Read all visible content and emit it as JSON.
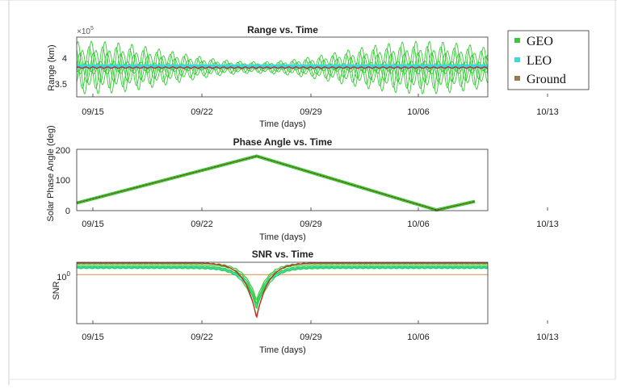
{
  "legend": {
    "items": [
      {
        "label": "GEO",
        "color": "#33cc33"
      },
      {
        "label": "LEO",
        "color": "#33dddd"
      },
      {
        "label": "Ground",
        "color": "#9a7a4a"
      }
    ]
  },
  "chart_data": [
    {
      "type": "line",
      "title": "Range vs. Time",
      "xlabel": "Time (days)",
      "ylabel": "Range (km)",
      "y_exponent_label": "×10^5",
      "x_ticks": [
        "09/15",
        "09/22",
        "09/29",
        "10/06",
        "10/13"
      ],
      "y_ticks": [
        "3.5",
        "4"
      ],
      "ylim": [
        3.35,
        4.35
      ],
      "series": [
        {
          "name": "GEO",
          "description_values": {
            "mean": 3.84,
            "amplitude_min": 0.1,
            "amplitude_max": 0.45,
            "amplitude_peak_dates": [
              "09/14",
              "10/07"
            ],
            "amplitude_trough_dates": [
              "09/26",
              "10/12"
            ]
          }
        },
        {
          "name": "LEO",
          "values_mean": 3.86
        },
        {
          "name": "Ground",
          "values_mean": 3.84
        }
      ]
    },
    {
      "type": "line",
      "title": "Phase Angle vs. Time",
      "xlabel": "Time (days)",
      "ylabel": "Solar Phase Angle (deg)",
      "x_ticks": [
        "09/15",
        "09/22",
        "09/29",
        "10/06",
        "10/13"
      ],
      "y_ticks": [
        "0",
        "100",
        "200"
      ],
      "ylim": [
        0,
        200
      ],
      "points": [
        {
          "date": "09/13",
          "value": 25
        },
        {
          "date": "09/27",
          "value": 178
        },
        {
          "date": "10/11",
          "value": 2
        },
        {
          "date": "10/14",
          "value": 30
        }
      ]
    },
    {
      "type": "line",
      "title": "SNR vs. Time",
      "xlabel": "Time (days)",
      "ylabel": "SNR",
      "y_scale": "log",
      "x_ticks": [
        "09/15",
        "09/22",
        "09/29",
        "10/06",
        "10/13"
      ],
      "y_ticks": [
        "10^0"
      ],
      "series": [
        {
          "name": "GEO",
          "baseline": 2.2,
          "dip_date": "09/27",
          "dip_min": 0.08
        },
        {
          "name": "LEO",
          "baseline": 1.8,
          "dip_date": "09/27",
          "dip_min": 0.15
        },
        {
          "name": "Ground",
          "baseline": 1.15,
          "dip_date": "09/27",
          "dip_min": 1.15
        }
      ]
    }
  ]
}
